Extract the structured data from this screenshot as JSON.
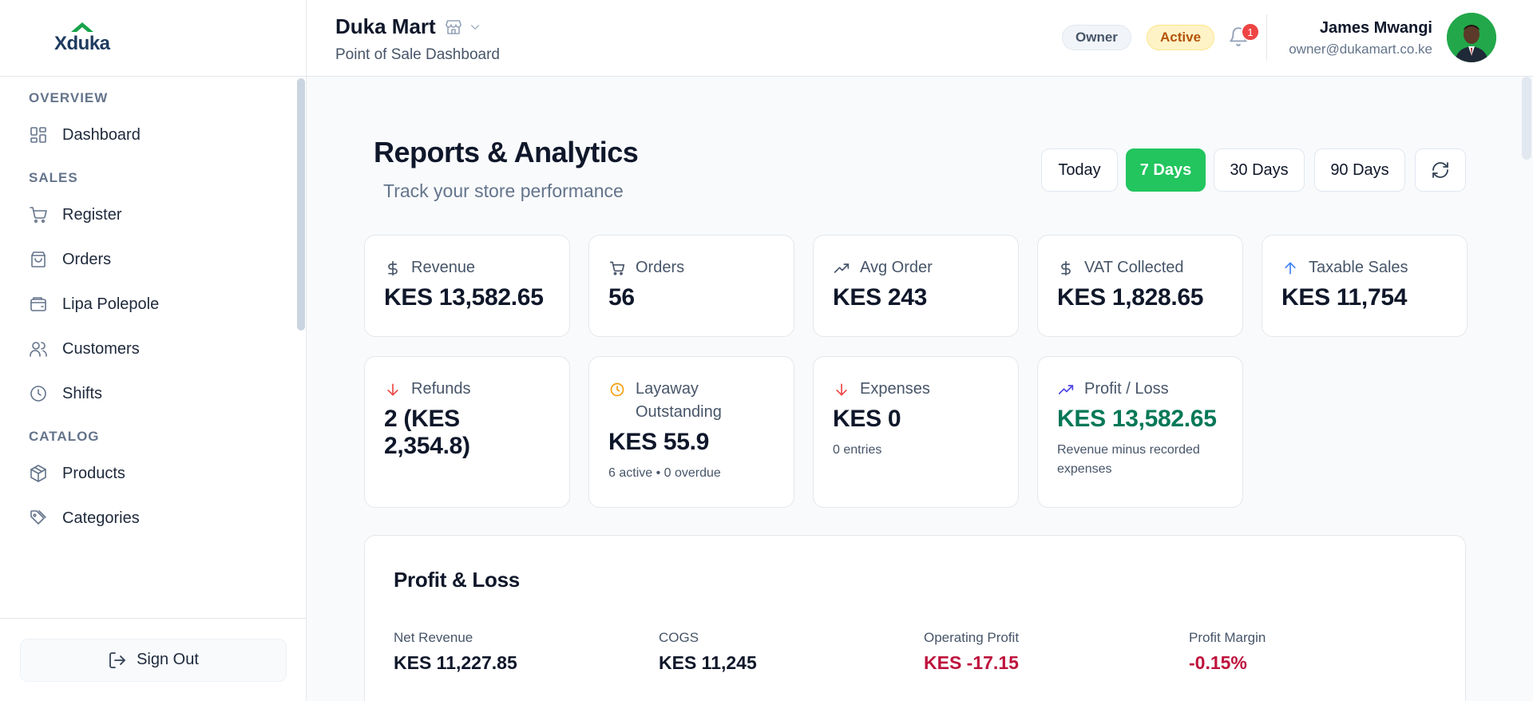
{
  "sidebar": {
    "logo_text": "Xduka",
    "sections": [
      {
        "title": "OVERVIEW",
        "items": [
          {
            "label": "Dashboard",
            "icon": "grid-icon"
          }
        ]
      },
      {
        "title": "SALES",
        "items": [
          {
            "label": "Register",
            "icon": "cart-icon"
          },
          {
            "label": "Orders",
            "icon": "bag-icon"
          },
          {
            "label": "Lipa Polepole",
            "icon": "wallet-icon"
          },
          {
            "label": "Customers",
            "icon": "users-icon"
          },
          {
            "label": "Shifts",
            "icon": "clock-icon"
          }
        ]
      },
      {
        "title": "CATALOG",
        "items": [
          {
            "label": "Products",
            "icon": "box-icon"
          },
          {
            "label": "Categories",
            "icon": "tag-icon"
          }
        ]
      }
    ],
    "sign_out": "Sign Out"
  },
  "header": {
    "store_name": "Duka Mart",
    "subtitle": "Point of Sale Dashboard",
    "role_badge": "Owner",
    "status_badge": "Active",
    "notification_count": "1",
    "user_name": "James Mwangi",
    "user_email": "owner@dukamart.co.ke"
  },
  "main": {
    "title": "Reports & Analytics",
    "subtitle": "Track your store performance",
    "ranges": [
      "Today",
      "7 Days",
      "30 Days",
      "90 Days"
    ],
    "active_range": "7 Days",
    "cards": [
      {
        "label": "Revenue",
        "value": "KES 13,582.65",
        "icon": "dollar-icon"
      },
      {
        "label": "Orders",
        "value": "56",
        "icon": "cart-icon"
      },
      {
        "label": "Avg Order",
        "value": "KES 243",
        "icon": "trending-up-icon"
      },
      {
        "label": "VAT Collected",
        "value": "KES 1,828.65",
        "icon": "dollar-icon"
      },
      {
        "label": "Taxable Sales",
        "value": "KES 11,754",
        "icon": "arrow-up-icon"
      },
      {
        "label": "Refunds",
        "value": "2 (KES 2,354.8)",
        "icon": "arrow-down-icon"
      },
      {
        "label": "Layaway Outstanding",
        "value": "KES 55.9",
        "note": "6 active • 0 overdue",
        "icon": "clock-icon"
      },
      {
        "label": "Expenses",
        "value": "KES 0",
        "note": "0 entries",
        "icon": "arrow-down-icon"
      },
      {
        "label": "Profit / Loss",
        "value": "KES 13,582.65",
        "note": "Revenue minus recorded expenses",
        "icon": "trending-up-icon"
      }
    ],
    "profit_loss": {
      "title": "Profit & Loss",
      "metrics": [
        {
          "label": "Net Revenue",
          "value": "KES 11,227.85"
        },
        {
          "label": "COGS",
          "value": "KES 11,245"
        },
        {
          "label": "Operating Profit",
          "value": "KES -17.15"
        },
        {
          "label": "Profit Margin",
          "value": "-0.15%"
        }
      ]
    }
  },
  "colors": {
    "accent_green": "#22c55e",
    "profit_green": "#047857",
    "negative_red": "#be123c",
    "refund_red": "#ef4444",
    "layaway_amber": "#f59e0b"
  }
}
